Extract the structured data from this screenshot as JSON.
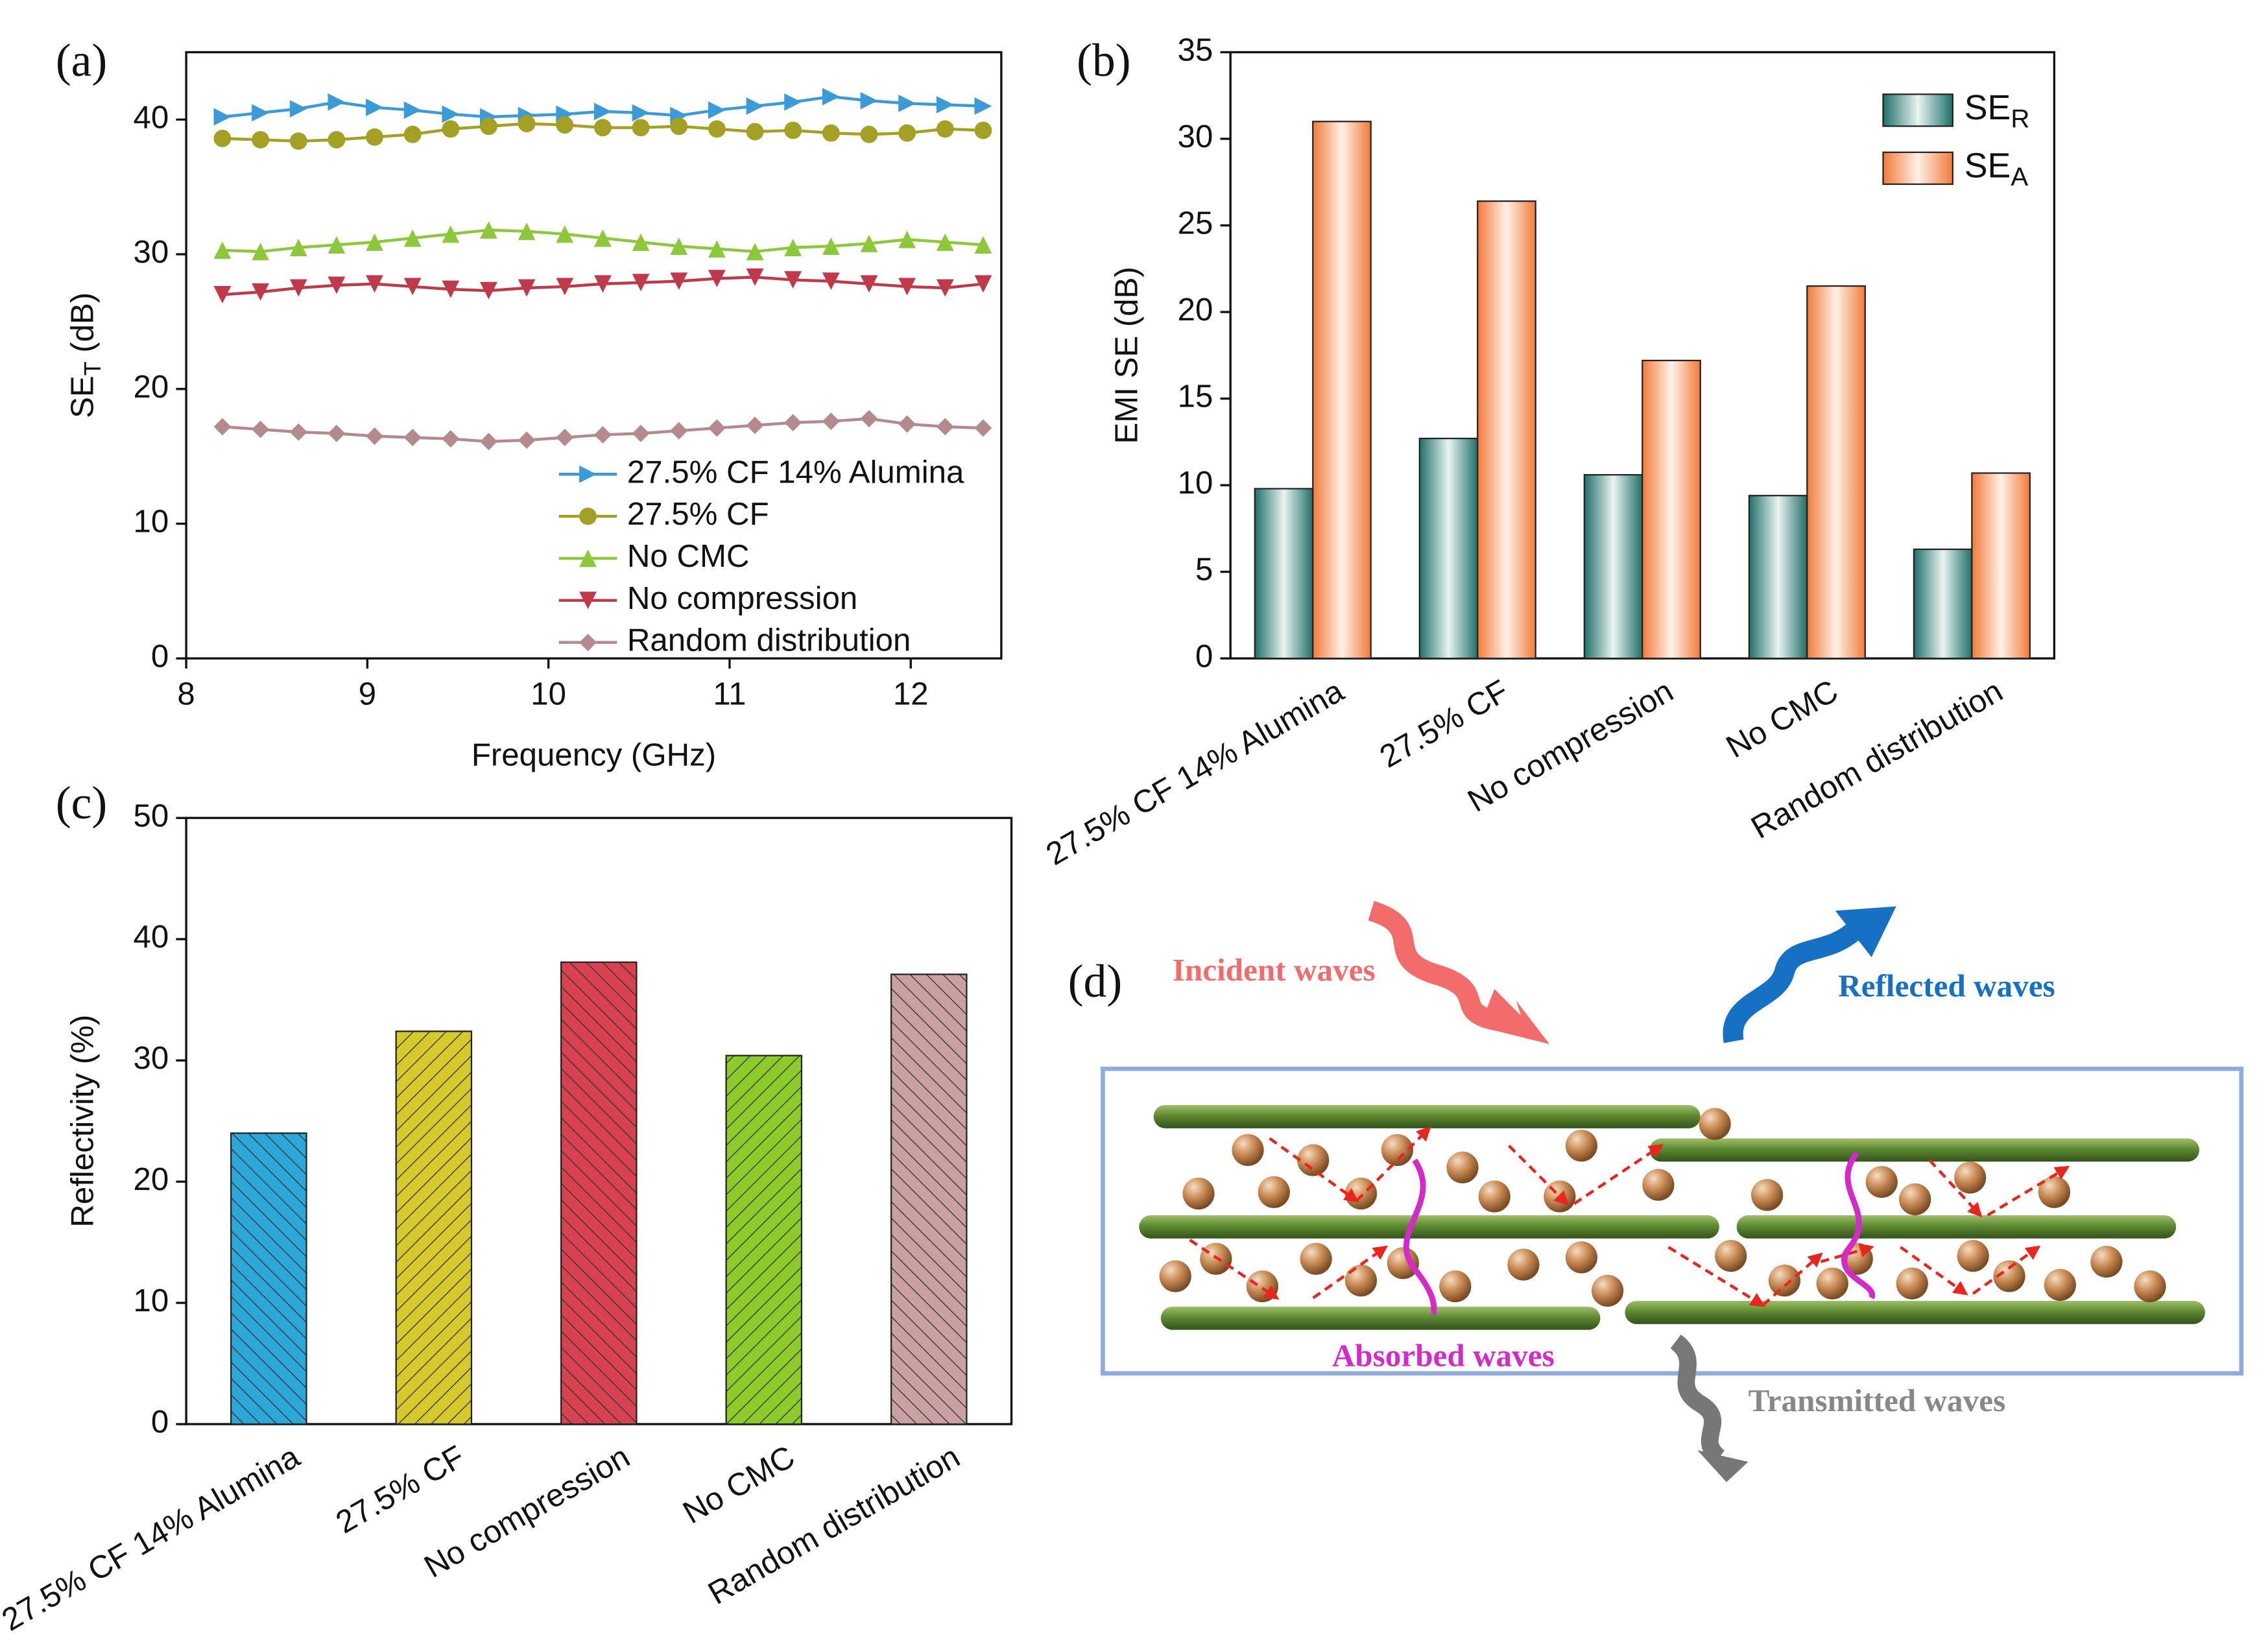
{
  "chart_data": [
    {
      "type": "line",
      "panel_label": "(a)",
      "x_label": "Frequency (GHz)",
      "y_label": {
        "main": "SE",
        "subscript": "T",
        "unit": " (dB)"
      },
      "x": [
        8.2,
        8.41,
        8.62,
        8.83,
        9.04,
        9.25,
        9.46,
        9.67,
        9.88,
        10.09,
        10.3,
        10.51,
        10.72,
        10.93,
        11.14,
        11.35,
        11.56,
        11.77,
        11.98,
        12.19,
        12.4
      ],
      "xlim": [
        8,
        12.5
      ],
      "xticks": [
        8,
        9,
        10,
        11,
        12
      ],
      "ylim": [
        0,
        45
      ],
      "yticks": [
        0,
        10,
        20,
        30,
        40
      ],
      "legend": "lower right",
      "series": [
        {
          "name": "27.5% CF 14% Alumina",
          "color": "#3b9ad8",
          "marker": "triangle-right",
          "values": [
            40.2,
            40.5,
            40.8,
            41.3,
            40.9,
            40.7,
            40.4,
            40.2,
            40.3,
            40.4,
            40.6,
            40.5,
            40.3,
            40.7,
            41.0,
            41.3,
            41.7,
            41.4,
            41.2,
            41.1,
            41.0
          ]
        },
        {
          "name": "27.5% CF",
          "color": "#a3a024",
          "marker": "circle",
          "values": [
            38.6,
            38.5,
            38.4,
            38.5,
            38.7,
            38.9,
            39.3,
            39.5,
            39.7,
            39.6,
            39.4,
            39.4,
            39.5,
            39.3,
            39.1,
            39.2,
            39.0,
            38.9,
            39.0,
            39.3,
            39.2
          ]
        },
        {
          "name": "No CMC",
          "color": "#8cc83a",
          "marker": "triangle-up",
          "values": [
            30.3,
            30.2,
            30.5,
            30.7,
            30.9,
            31.2,
            31.5,
            31.8,
            31.7,
            31.5,
            31.2,
            30.9,
            30.6,
            30.4,
            30.2,
            30.5,
            30.6,
            30.8,
            31.1,
            30.9,
            30.7
          ]
        },
        {
          "name": "No compression",
          "color": "#c0394a",
          "marker": "triangle-down",
          "values": [
            27.0,
            27.2,
            27.5,
            27.7,
            27.8,
            27.6,
            27.4,
            27.3,
            27.5,
            27.6,
            27.8,
            27.9,
            28.0,
            28.2,
            28.3,
            28.1,
            28.0,
            27.8,
            27.6,
            27.5,
            27.8
          ]
        },
        {
          "name": "Random distribution",
          "color": "#b48a8e",
          "marker": "diamond",
          "values": [
            17.2,
            17.0,
            16.8,
            16.7,
            16.5,
            16.4,
            16.3,
            16.1,
            16.2,
            16.4,
            16.6,
            16.7,
            16.9,
            17.1,
            17.3,
            17.5,
            17.6,
            17.8,
            17.4,
            17.2,
            17.1
          ]
        }
      ]
    },
    {
      "type": "grouped-bar",
      "panel_label": "(b)",
      "y_label": "EMI SE (dB)",
      "categories": [
        "27.5% CF 14% Alumina",
        "27.5% CF",
        "No compression",
        "No CMC",
        "Random distribution"
      ],
      "ylim": [
        0,
        35
      ],
      "yticks": [
        0,
        5,
        10,
        15,
        20,
        25,
        30,
        35
      ],
      "legend": "upper right",
      "series": [
        {
          "name": "SE",
          "subscript": "R",
          "color": "#2a7f78",
          "values": [
            9.8,
            12.7,
            10.6,
            9.4,
            6.3
          ]
        },
        {
          "name": "SE",
          "subscript": "A",
          "color": "#f58a4e",
          "values": [
            31.0,
            26.4,
            17.2,
            21.5,
            10.7
          ]
        }
      ]
    },
    {
      "type": "bar",
      "panel_label": "(c)",
      "y_label": "Reflectivity (%)",
      "categories": [
        "27.5% CF 14% Alumina",
        "27.5% CF",
        "No compression",
        "No CMC",
        "Random distribution"
      ],
      "values": [
        24.0,
        32.4,
        38.1,
        30.4,
        37.1
      ],
      "colors": [
        "#2ba7d8",
        "#d5c92c",
        "#d8414f",
        "#8dcb2a",
        "#c9a1a2"
      ],
      "ylim": [
        0,
        50
      ],
      "yticks": [
        0,
        10,
        20,
        30,
        40,
        50
      ]
    }
  ],
  "diagram": {
    "panel_label": "(d)",
    "incident": "Incident waves",
    "reflected": "Reflected waves",
    "absorbed": "Absorbed waves",
    "transmitted": "Transmitted waves"
  }
}
